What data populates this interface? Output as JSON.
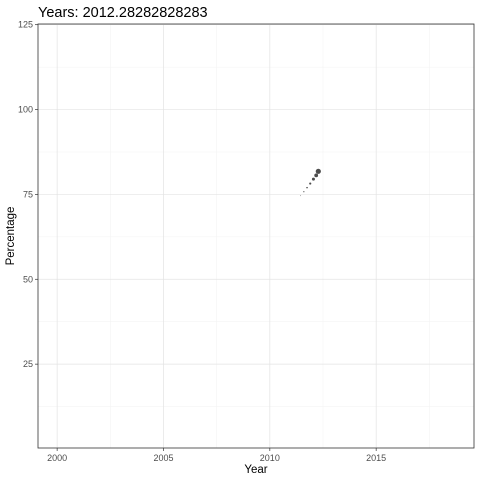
{
  "chart_data": {
    "type": "scatter",
    "title": "Years: 2012.28282828283",
    "xlabel": "Year",
    "ylabel": "Percentage",
    "xlim": [
      1999.1,
      2019.6
    ],
    "ylim": [
      0.3,
      125.2
    ],
    "x_ticks": [
      2000,
      2005,
      2010,
      2015
    ],
    "y_ticks": [
      25,
      50,
      75,
      100,
      125
    ],
    "grid": true,
    "point_color": "#4d4d4d",
    "series": [
      {
        "points": [
          {
            "x": 2011.45,
            "y": 74.6,
            "size": 0.4
          },
          {
            "x": 2011.6,
            "y": 75.8,
            "size": 0.6
          },
          {
            "x": 2011.75,
            "y": 77.0,
            "size": 0.8
          },
          {
            "x": 2011.9,
            "y": 78.2,
            "size": 1.1
          },
          {
            "x": 2012.05,
            "y": 79.5,
            "size": 1.5
          },
          {
            "x": 2012.18,
            "y": 80.6,
            "size": 1.9
          },
          {
            "x": 2012.28,
            "y": 81.8,
            "size": 2.6
          }
        ]
      }
    ]
  }
}
